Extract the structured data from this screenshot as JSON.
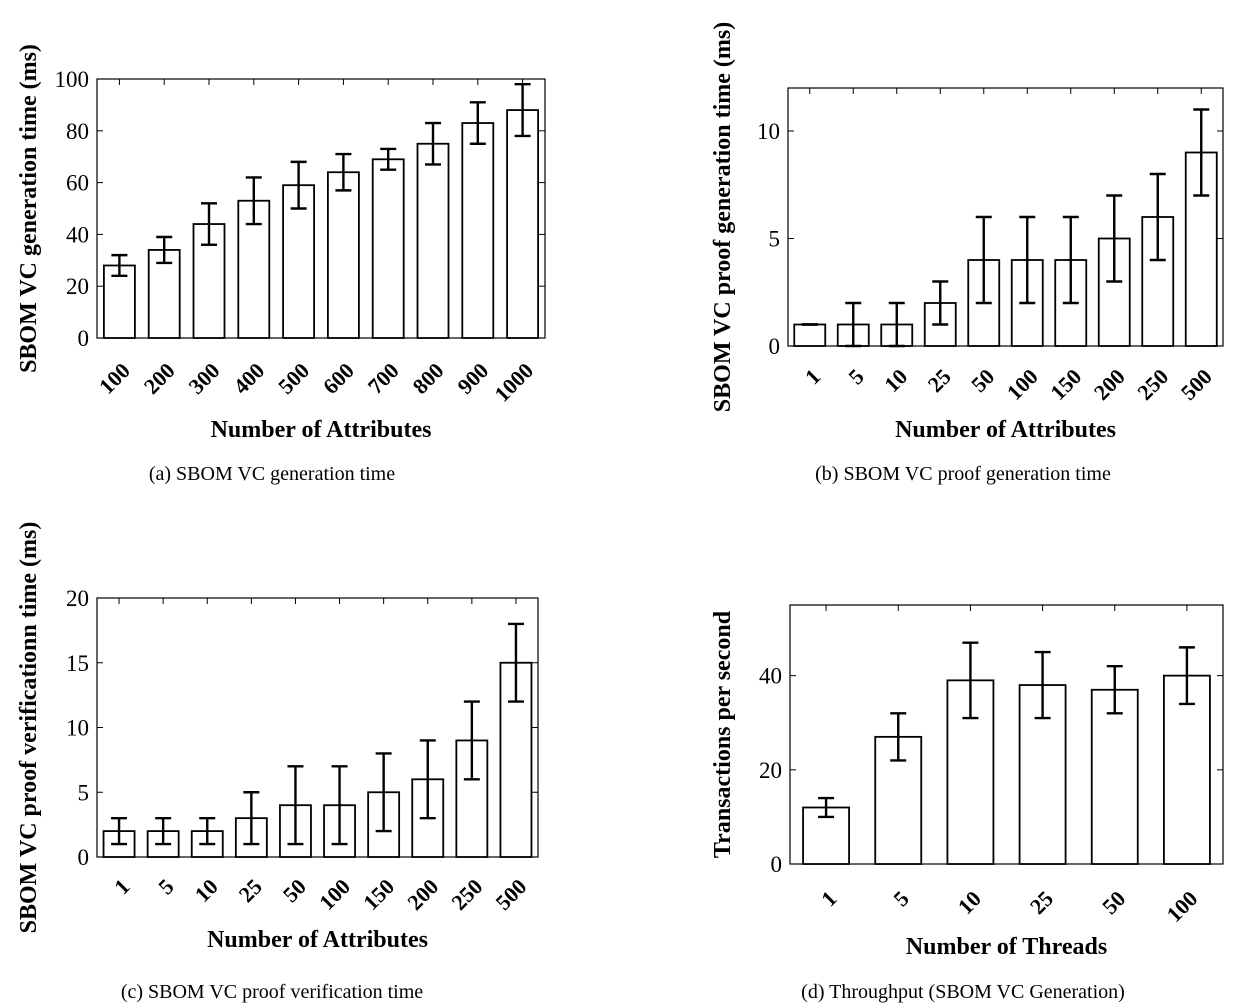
{
  "figure": {
    "panels": [
      {
        "caption": "(a) SBOM VC generation time"
      },
      {
        "caption": "(b) SBOM VC proof generation time"
      },
      {
        "caption": "(c) SBOM VC proof verification time"
      },
      {
        "caption": "(d) Throughput (SBOM VC Generation)"
      }
    ]
  },
  "chart_data": [
    {
      "type": "bar",
      "xlabel": "Number of Attributes",
      "ylabel": "SBOM VC generation time (ms)",
      "categories": [
        "100",
        "200",
        "300",
        "400",
        "500",
        "600",
        "700",
        "800",
        "900",
        "1000"
      ],
      "values": [
        28,
        34,
        44,
        53,
        59,
        64,
        69,
        75,
        83,
        88
      ],
      "errors": [
        4,
        5,
        8,
        9,
        9,
        7,
        4,
        8,
        8,
        10
      ],
      "ylim": [
        0,
        100
      ],
      "yticks": [
        0,
        20,
        40,
        60,
        80,
        100
      ],
      "grid": false
    },
    {
      "type": "bar",
      "xlabel": "Number of Attributes",
      "ylabel": "SBOM VC proof generation time (ms)",
      "categories": [
        "1",
        "5",
        "10",
        "25",
        "50",
        "100",
        "150",
        "200",
        "250",
        "500"
      ],
      "values": [
        1,
        1,
        1,
        2,
        4,
        4,
        4,
        5,
        6,
        9
      ],
      "errors": [
        0,
        1,
        1,
        1,
        2,
        2,
        2,
        2,
        2,
        2
      ],
      "ylim": [
        0,
        12
      ],
      "yticks": [
        0,
        5,
        10
      ],
      "grid": false
    },
    {
      "type": "bar",
      "xlabel": "Number of Attributes",
      "ylabel": "SBOM VC proof verificationn time (ms)",
      "categories": [
        "1",
        "5",
        "10",
        "25",
        "50",
        "100",
        "150",
        "200",
        "250",
        "500"
      ],
      "values": [
        2,
        2,
        2,
        3,
        4,
        4,
        5,
        6,
        9,
        15
      ],
      "errors": [
        1,
        1,
        1,
        2,
        3,
        3,
        3,
        3,
        3,
        3
      ],
      "ylim": [
        0,
        20
      ],
      "yticks": [
        0,
        5,
        10,
        15,
        20
      ],
      "grid": false
    },
    {
      "type": "bar",
      "xlabel": "Number of Threads",
      "ylabel": "Transactions per second",
      "categories": [
        "1",
        "5",
        "10",
        "25",
        "50",
        "100"
      ],
      "values": [
        12,
        27,
        39,
        38,
        37,
        40
      ],
      "errors": [
        2,
        5,
        8,
        7,
        5,
        6
      ],
      "ylim": [
        0,
        55
      ],
      "yticks": [
        0,
        20,
        40
      ],
      "grid": false
    }
  ]
}
